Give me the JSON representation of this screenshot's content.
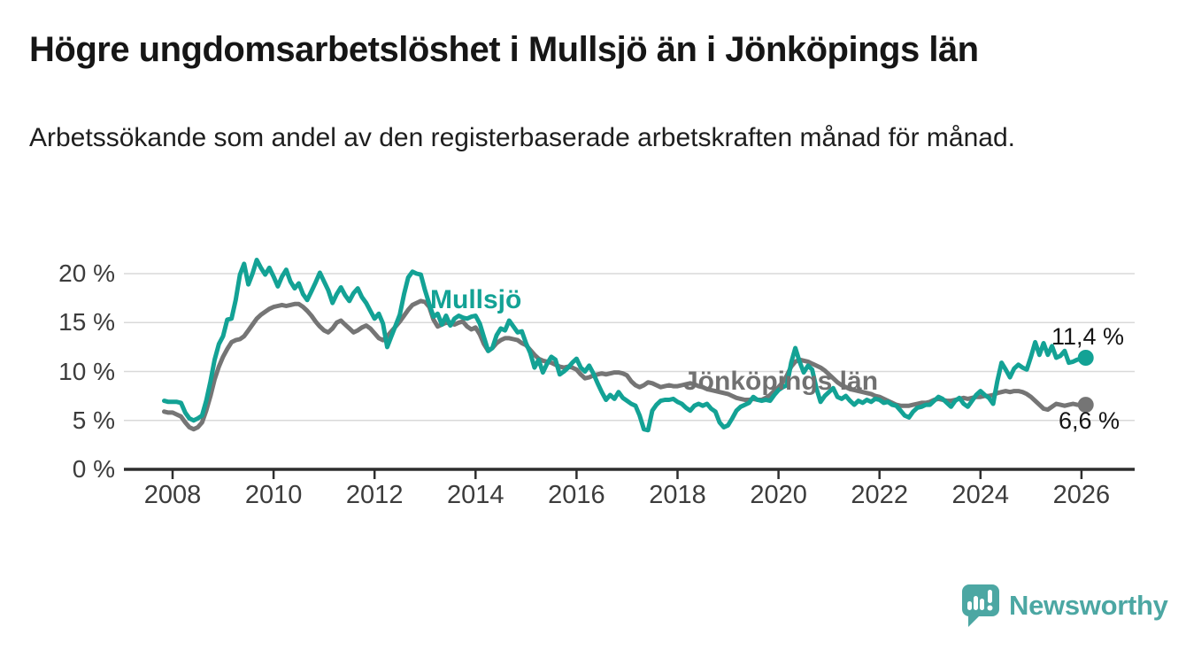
{
  "header": {
    "title": "Högre ungdomsarbetslöshet i Mullsjö än i Jönköpings län",
    "subtitle": "Arbetssökande som andel av den registerbaserade arbetskraften månad för månad."
  },
  "footer": {
    "brand": "Newsworthy"
  },
  "colors": {
    "mullsjo_teal": "#13A295",
    "county_gray": "#757575",
    "brand_teal": "#4CA7A3",
    "axis_text": "#3c3c3c",
    "grid": "#d9d9d9",
    "axis_line": "#2e2e2e"
  },
  "chart_data": {
    "type": "line",
    "title": "Högre ungdomsarbetslöshet i Mullsjö än i Jönköpings län",
    "subtitle": "Arbetssökande som andel av den registerbaserade arbetskraften månad för månad.",
    "frequency": "monthly",
    "grid": true,
    "legend": "inline-labels",
    "x_axis": {
      "tick_values": [
        2008,
        2010,
        2012,
        2014,
        2016,
        2018,
        2020,
        2022,
        2024,
        2026
      ],
      "tick_labels": [
        "2008",
        "2010",
        "2012",
        "2014",
        "2016",
        "2018",
        "2020",
        "2022",
        "2024",
        "2026"
      ],
      "range": [
        2007.8,
        2027.0
      ]
    },
    "y_axis": {
      "tick_values": [
        0,
        5,
        10,
        15,
        20
      ],
      "tick_labels": [
        "0 %",
        "5 %",
        "10 %",
        "15 %",
        "20 %"
      ],
      "unit": "%",
      "range": [
        0,
        22
      ]
    },
    "series": [
      {
        "id": "county",
        "name": "Jönköpings län",
        "color": "#757575",
        "start_year": 2007.8333,
        "points_per_year": 12,
        "end_label": "6,6 %",
        "end_value": 6.6,
        "values": [
          5.9,
          5.8,
          5.8,
          5.6,
          5.4,
          4.8,
          4.3,
          4.1,
          4.3,
          4.8,
          6.0,
          7.5,
          9.2,
          10.5,
          11.5,
          12.3,
          13.0,
          13.2,
          13.3,
          13.6,
          14.2,
          14.8,
          15.4,
          15.8,
          16.1,
          16.4,
          16.6,
          16.7,
          16.8,
          16.7,
          16.8,
          16.9,
          16.9,
          16.6,
          16.2,
          15.7,
          15.1,
          14.6,
          14.2,
          14.0,
          14.4,
          15.0,
          15.2,
          14.8,
          14.4,
          14.0,
          14.2,
          14.5,
          14.7,
          14.4,
          13.9,
          13.4,
          13.2,
          13.6,
          14.1,
          14.6,
          15.1,
          15.7,
          16.3,
          16.8,
          17.0,
          17.2,
          17.1,
          16.6,
          15.3,
          14.6,
          14.8,
          15.0,
          14.9,
          14.8,
          15.0,
          15.1,
          14.6,
          14.3,
          14.5,
          13.8,
          12.8,
          12.1,
          12.4,
          12.9,
          13.2,
          13.4,
          13.4,
          13.3,
          13.2,
          12.9,
          12.7,
          12.2,
          11.7,
          11.3,
          11.1,
          11.0,
          10.9,
          10.7,
          10.5,
          10.4,
          10.5,
          10.4,
          10.2,
          9.7,
          9.3,
          9.4,
          9.6,
          9.7,
          9.8,
          9.7,
          9.8,
          9.9,
          9.9,
          9.8,
          9.6,
          9.0,
          8.6,
          8.4,
          8.6,
          8.9,
          8.8,
          8.6,
          8.4,
          8.5,
          8.6,
          8.5,
          8.5,
          8.6,
          8.7,
          8.8,
          8.7,
          8.5,
          8.4,
          8.2,
          8.1,
          8.0,
          7.9,
          7.8,
          7.7,
          7.5,
          7.3,
          7.2,
          7.1,
          7.1,
          7.2,
          7.1,
          7.1,
          7.3,
          7.6,
          8.0,
          8.4,
          8.9,
          9.6,
          10.5,
          11.0,
          11.2,
          11.1,
          11.0,
          10.8,
          10.6,
          10.4,
          10.1,
          9.7,
          9.3,
          8.9,
          8.6,
          8.4,
          8.2,
          8.1,
          8.0,
          7.9,
          7.8,
          7.7,
          7.5,
          7.4,
          7.2,
          7.0,
          6.8,
          6.6,
          6.5,
          6.5,
          6.5,
          6.6,
          6.7,
          6.8,
          6.8,
          6.9,
          7.1,
          7.2,
          7.1,
          7.0,
          7.0,
          7.1,
          7.2,
          7.3,
          7.2,
          7.3,
          7.4,
          7.4,
          7.5,
          7.5,
          7.6,
          7.8,
          7.9,
          8.0,
          7.9,
          8.0,
          8.0,
          7.9,
          7.7,
          7.4,
          7.0,
          6.6,
          6.2,
          6.1,
          6.4,
          6.7,
          6.6,
          6.5,
          6.6,
          6.7,
          6.6,
          6.6,
          6.6
        ]
      },
      {
        "id": "mullsjo",
        "name": "Mullsjö",
        "color": "#13A295",
        "start_year": 2007.8333,
        "points_per_year": 12,
        "end_label": "11,4 %",
        "end_value": 11.4,
        "values": [
          7.0,
          6.9,
          6.9,
          6.9,
          6.8,
          5.8,
          5.2,
          5.0,
          5.2,
          5.5,
          7.0,
          9.0,
          11.2,
          12.8,
          13.6,
          15.3,
          15.4,
          17.3,
          19.9,
          21.0,
          18.9,
          20.0,
          21.4,
          20.6,
          19.9,
          20.6,
          19.7,
          18.7,
          19.7,
          20.4,
          19.2,
          18.5,
          19.0,
          17.9,
          17.3,
          18.2,
          19.1,
          20.1,
          19.2,
          18.3,
          17.0,
          17.9,
          18.6,
          17.8,
          17.2,
          18.0,
          18.5,
          17.6,
          17.0,
          16.2,
          15.4,
          15.9,
          14.9,
          12.5,
          13.6,
          14.7,
          15.8,
          17.9,
          19.6,
          20.2,
          20.0,
          19.9,
          18.3,
          16.9,
          15.6,
          15.9,
          14.8,
          15.7,
          14.7,
          15.4,
          15.7,
          15.5,
          15.4,
          15.6,
          15.7,
          14.9,
          13.5,
          12.1,
          12.4,
          13.7,
          14.4,
          14.2,
          15.2,
          14.6,
          14.0,
          14.1,
          12.9,
          11.9,
          10.4,
          11.2,
          9.9,
          10.8,
          11.5,
          11.2,
          9.7,
          10.0,
          10.4,
          10.9,
          11.3,
          10.4,
          10.0,
          10.6,
          9.8,
          8.8,
          7.9,
          7.1,
          7.6,
          7.2,
          7.9,
          7.3,
          7.0,
          6.7,
          6.5,
          5.5,
          4.1,
          4.0,
          6.0,
          6.6,
          7.0,
          7.1,
          7.1,
          7.2,
          6.9,
          6.7,
          6.3,
          6.0,
          6.5,
          6.7,
          6.5,
          6.7,
          6.2,
          5.9,
          4.8,
          4.3,
          4.5,
          5.2,
          6.0,
          6.4,
          6.6,
          6.8,
          7.4,
          7.1,
          7.0,
          7.1,
          7.0,
          7.6,
          8.1,
          8.4,
          8.6,
          10.9,
          12.4,
          11.0,
          9.9,
          10.6,
          10.2,
          8.3,
          6.9,
          7.5,
          7.9,
          8.3,
          7.4,
          7.2,
          7.5,
          7.0,
          6.6,
          7.0,
          6.8,
          7.1,
          6.9,
          7.2,
          7.1,
          6.8,
          6.9,
          6.6,
          6.5,
          6.0,
          5.5,
          5.3,
          5.9,
          6.3,
          6.4,
          6.6,
          6.6,
          7.0,
          7.4,
          7.2,
          6.8,
          6.4,
          7.0,
          7.3,
          6.7,
          6.4,
          7.0,
          7.6,
          8.0,
          7.6,
          7.3,
          6.7,
          9.0,
          10.9,
          10.2,
          9.4,
          10.3,
          10.7,
          10.4,
          10.2,
          11.5,
          13.0,
          11.7,
          12.9,
          11.7,
          12.6,
          11.4,
          11.6,
          12.1,
          10.9,
          11.0,
          11.2,
          11.3,
          11.4
        ]
      }
    ]
  }
}
